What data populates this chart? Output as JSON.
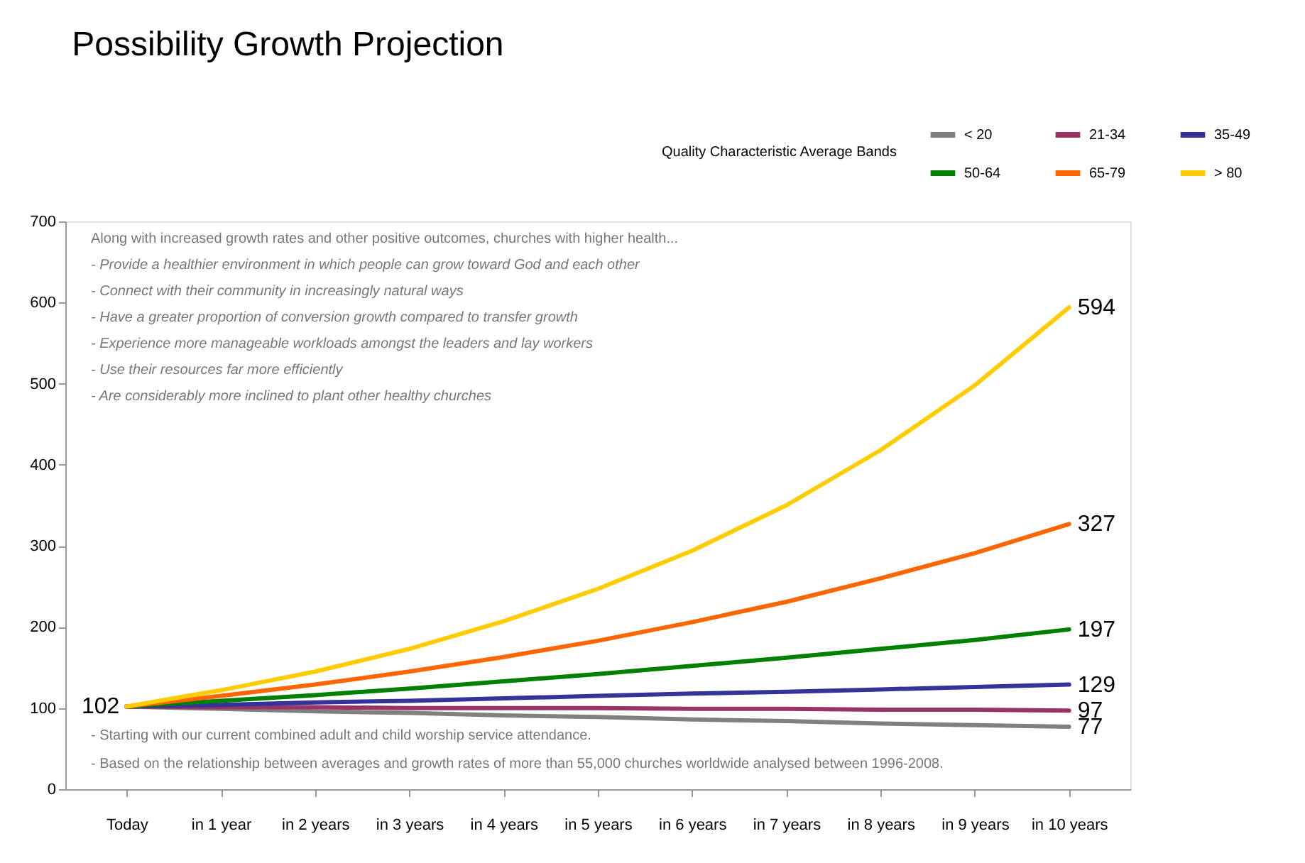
{
  "chart_data": {
    "type": "line",
    "title": "Possibility Growth Projection",
    "legend_title": "Quality Characteristic Average Bands",
    "legend": "top right",
    "grid": false,
    "marker": "none",
    "line_style": "solid",
    "categories": [
      "Today",
      "in 1 year",
      "in 2 years",
      "in 3 years",
      "in 4 years",
      "in 5 years",
      "in 6 years",
      "in 7 years",
      "in 8 years",
      "in 9 years",
      "in 10 years"
    ],
    "ylim": [
      0,
      700
    ],
    "yticks": [
      0,
      100,
      200,
      300,
      400,
      500,
      600,
      700
    ],
    "series": [
      {
        "name": "< 20",
        "color": "#808080",
        "values": [
          102,
          99,
          96,
          94,
          91,
          89,
          86,
          84,
          81,
          79,
          77
        ],
        "value_labels": [
          null,
          null,
          null,
          null,
          null,
          null,
          null,
          null,
          null,
          null,
          "77"
        ]
      },
      {
        "name": "21-34",
        "color": "#993366",
        "values": [
          102,
          101,
          101,
          100,
          100,
          100,
          99,
          99,
          98,
          98,
          97
        ],
        "value_labels": [
          null,
          null,
          null,
          null,
          null,
          null,
          null,
          null,
          null,
          null,
          "97"
        ]
      },
      {
        "name": "35-49",
        "color": "#333399",
        "values": [
          102,
          104,
          107,
          109,
          112,
          115,
          118,
          120,
          123,
          126,
          129
        ],
        "value_labels": [
          null,
          null,
          null,
          null,
          null,
          null,
          null,
          null,
          null,
          null,
          "129"
        ]
      },
      {
        "name": "50-64",
        "color": "#008000",
        "values": [
          102,
          109,
          116,
          124,
          133,
          142,
          152,
          162,
          173,
          184,
          197
        ],
        "value_labels": [
          null,
          null,
          null,
          null,
          null,
          null,
          null,
          null,
          null,
          null,
          "197"
        ]
      },
      {
        "name": "65-79",
        "color": "#ff6600",
        "values": [
          102,
          115,
          129,
          145,
          163,
          183,
          206,
          231,
          260,
          291,
          327
        ],
        "value_labels": [
          null,
          null,
          null,
          null,
          null,
          null,
          null,
          null,
          null,
          null,
          "327"
        ]
      },
      {
        "name": "> 80",
        "color": "#ffcc00",
        "values": [
          102,
          122,
          145,
          173,
          207,
          247,
          294,
          350,
          418,
          498,
          594
        ],
        "value_labels": [
          "102",
          null,
          null,
          null,
          null,
          null,
          null,
          null,
          null,
          null,
          "594"
        ]
      }
    ],
    "annotations": [
      "Along with increased growth rates and other positive outcomes, churches with higher health...",
      "- Provide a healthier environment in which people can grow toward God and each other",
      "- Connect with their community in increasingly natural ways",
      "- Have a greater proportion of conversion growth compared to transfer growth",
      "- Experience more manageable workloads amongst the leaders and lay workers",
      "- Use their resources far more efficiently",
      "- Are considerably more inclined to plant other healthy churches",
      "- Starting with our current combined adult and child worship service attendance.",
      "- Based on the relationship between averages and growth rates of more than 55,000 churches worldwide analysed between 1996-2008."
    ]
  }
}
